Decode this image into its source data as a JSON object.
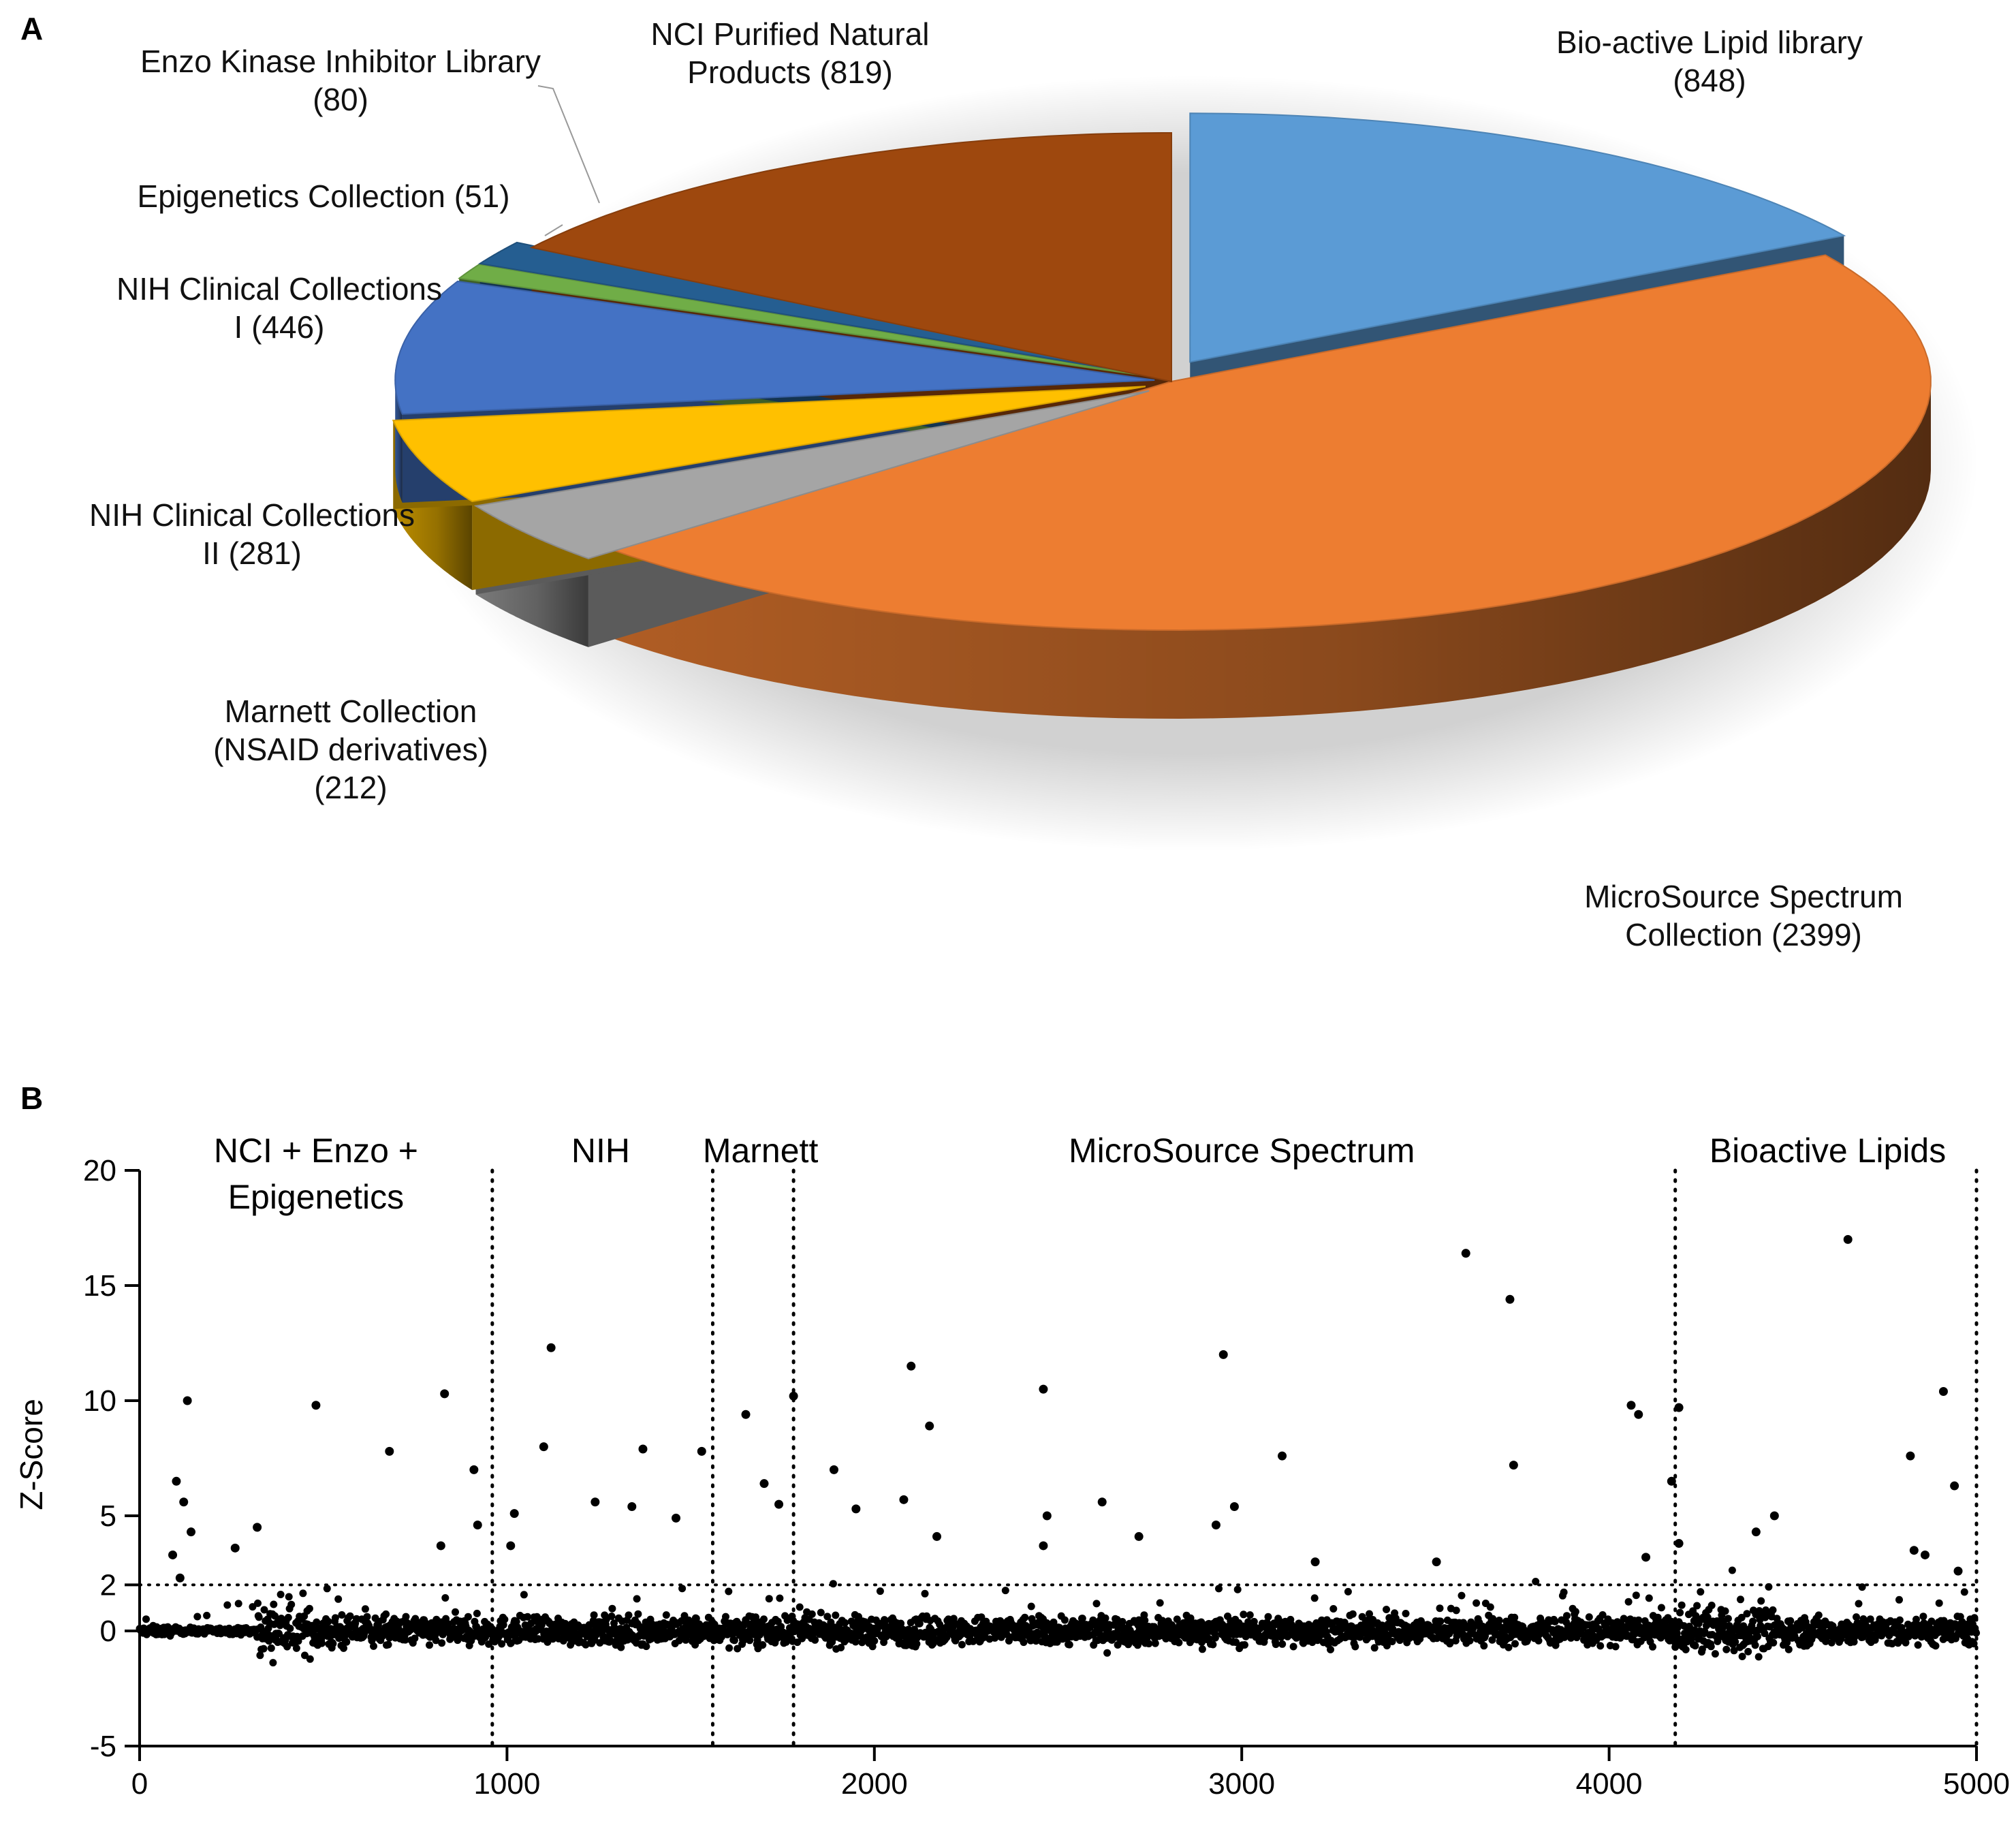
{
  "chart_data": [
    {
      "panel": "A",
      "type": "pie",
      "slices": [
        {
          "label_lines": [
            "Bio-active Lipid library",
            "(848)"
          ],
          "value": 848,
          "color": "#5b9bd5"
        },
        {
          "label_lines": [
            "MicroSource Spectrum",
            "Collection (2399)"
          ],
          "value": 2399,
          "color": "#ed7d31"
        },
        {
          "label_lines": [
            "Marnett Collection",
            "(NSAID derivatives)",
            "(212)"
          ],
          "value": 212,
          "color": "#a5a5a5"
        },
        {
          "label_lines": [
            "NIH Clinical Collections",
            "II (281)"
          ],
          "value": 281,
          "color": "#ffc000"
        },
        {
          "label_lines": [
            "NIH Clinical Collections",
            "I (446)"
          ],
          "value": 446,
          "color": "#4472c4"
        },
        {
          "label_lines": [
            "Epigenetics Collection (51)"
          ],
          "value": 51,
          "color": "#70ad47"
        },
        {
          "label_lines": [
            "Enzo Kinase Inhibitor Library",
            "(80)"
          ],
          "value": 80,
          "color": "#255e91"
        },
        {
          "label_lines": [
            "NCI Purified Natural",
            "Products (819)"
          ],
          "value": 819,
          "color": "#9e480e"
        }
      ]
    },
    {
      "panel": "B",
      "type": "scatter",
      "ylabel": "Z-Score",
      "xlabel": "",
      "xlim": [
        0,
        5000
      ],
      "ylim": [
        -5,
        20
      ],
      "xticks": [
        0,
        1000,
        2000,
        3000,
        4000,
        5000
      ],
      "yticks": [
        -5,
        0,
        2,
        5,
        10,
        15,
        20
      ],
      "threshold_y": 2,
      "dividers_x": [
        960,
        1560,
        1780,
        4180,
        5000
      ],
      "regions": [
        {
          "label_lines": [
            "NCI + Enzo +",
            "Epigenetics"
          ],
          "x_center": 480
        },
        {
          "label_lines": [
            "NIH"
          ],
          "x_center": 1255
        },
        {
          "label_lines": [
            "Marnett"
          ],
          "x_center": 1690
        },
        {
          "label_lines": [
            "MicroSource Spectrum"
          ],
          "x_center": 3000
        },
        {
          "label_lines": [
            "Bioactive Lipids"
          ],
          "x_center": 4595
        }
      ],
      "highlighted_points": [
        {
          "x": 100,
          "y": 6.5
        },
        {
          "x": 120,
          "y": 5.6
        },
        {
          "x": 130,
          "y": 10.0
        },
        {
          "x": 140,
          "y": 4.3
        },
        {
          "x": 90,
          "y": 3.3
        },
        {
          "x": 110,
          "y": 2.3
        },
        {
          "x": 260,
          "y": 3.6
        },
        {
          "x": 320,
          "y": 4.5
        },
        {
          "x": 480,
          "y": 9.8
        },
        {
          "x": 680,
          "y": 7.8
        },
        {
          "x": 830,
          "y": 10.3
        },
        {
          "x": 820,
          "y": 3.7
        },
        {
          "x": 910,
          "y": 7.0
        },
        {
          "x": 920,
          "y": 4.6
        },
        {
          "x": 1020,
          "y": 5.1
        },
        {
          "x": 1010,
          "y": 3.7
        },
        {
          "x": 1100,
          "y": 8.0
        },
        {
          "x": 1120,
          "y": 12.3
        },
        {
          "x": 1240,
          "y": 5.6
        },
        {
          "x": 1340,
          "y": 5.4
        },
        {
          "x": 1370,
          "y": 7.9
        },
        {
          "x": 1460,
          "y": 4.9
        },
        {
          "x": 1530,
          "y": 7.8
        },
        {
          "x": 1650,
          "y": 9.4
        },
        {
          "x": 1700,
          "y": 6.4
        },
        {
          "x": 1740,
          "y": 5.5
        },
        {
          "x": 1780,
          "y": 10.2
        },
        {
          "x": 1890,
          "y": 7.0
        },
        {
          "x": 1950,
          "y": 5.3
        },
        {
          "x": 2080,
          "y": 5.7
        },
        {
          "x": 2100,
          "y": 11.5
        },
        {
          "x": 2150,
          "y": 8.9
        },
        {
          "x": 2170,
          "y": 4.1
        },
        {
          "x": 2460,
          "y": 10.5
        },
        {
          "x": 2460,
          "y": 3.7
        },
        {
          "x": 2470,
          "y": 5.0
        },
        {
          "x": 2620,
          "y": 5.6
        },
        {
          "x": 2720,
          "y": 4.1
        },
        {
          "x": 2930,
          "y": 4.6
        },
        {
          "x": 2950,
          "y": 12.0
        },
        {
          "x": 2980,
          "y": 5.4
        },
        {
          "x": 3110,
          "y": 7.6
        },
        {
          "x": 3200,
          "y": 3.0
        },
        {
          "x": 3530,
          "y": 3.0
        },
        {
          "x": 3610,
          "y": 16.4
        },
        {
          "x": 3730,
          "y": 14.4
        },
        {
          "x": 3740,
          "y": 7.2
        },
        {
          "x": 4060,
          "y": 9.8
        },
        {
          "x": 4080,
          "y": 9.4
        },
        {
          "x": 4100,
          "y": 3.2
        },
        {
          "x": 4170,
          "y": 6.5
        },
        {
          "x": 4190,
          "y": 9.7
        },
        {
          "x": 4190,
          "y": 3.8
        },
        {
          "x": 4400,
          "y": 4.3
        },
        {
          "x": 4450,
          "y": 5.0
        },
        {
          "x": 4650,
          "y": 17.0
        },
        {
          "x": 4820,
          "y": 7.6
        },
        {
          "x": 4830,
          "y": 3.5
        },
        {
          "x": 4860,
          "y": 3.3
        },
        {
          "x": 4910,
          "y": 10.4
        },
        {
          "x": 4940,
          "y": 6.3
        },
        {
          "x": 4950,
          "y": 2.6
        }
      ],
      "bulk_noise_segments": [
        {
          "x0": 0,
          "x1": 90,
          "spread": 0.18
        },
        {
          "x0": 90,
          "x1": 320,
          "spread": 0.12
        },
        {
          "x0": 320,
          "x1": 560,
          "spread": 0.85
        },
        {
          "x0": 560,
          "x1": 4180,
          "spread": 0.55
        },
        {
          "x0": 4180,
          "x1": 4460,
          "spread": 0.9
        },
        {
          "x0": 4460,
          "x1": 5000,
          "spread": 0.55
        }
      ]
    }
  ]
}
